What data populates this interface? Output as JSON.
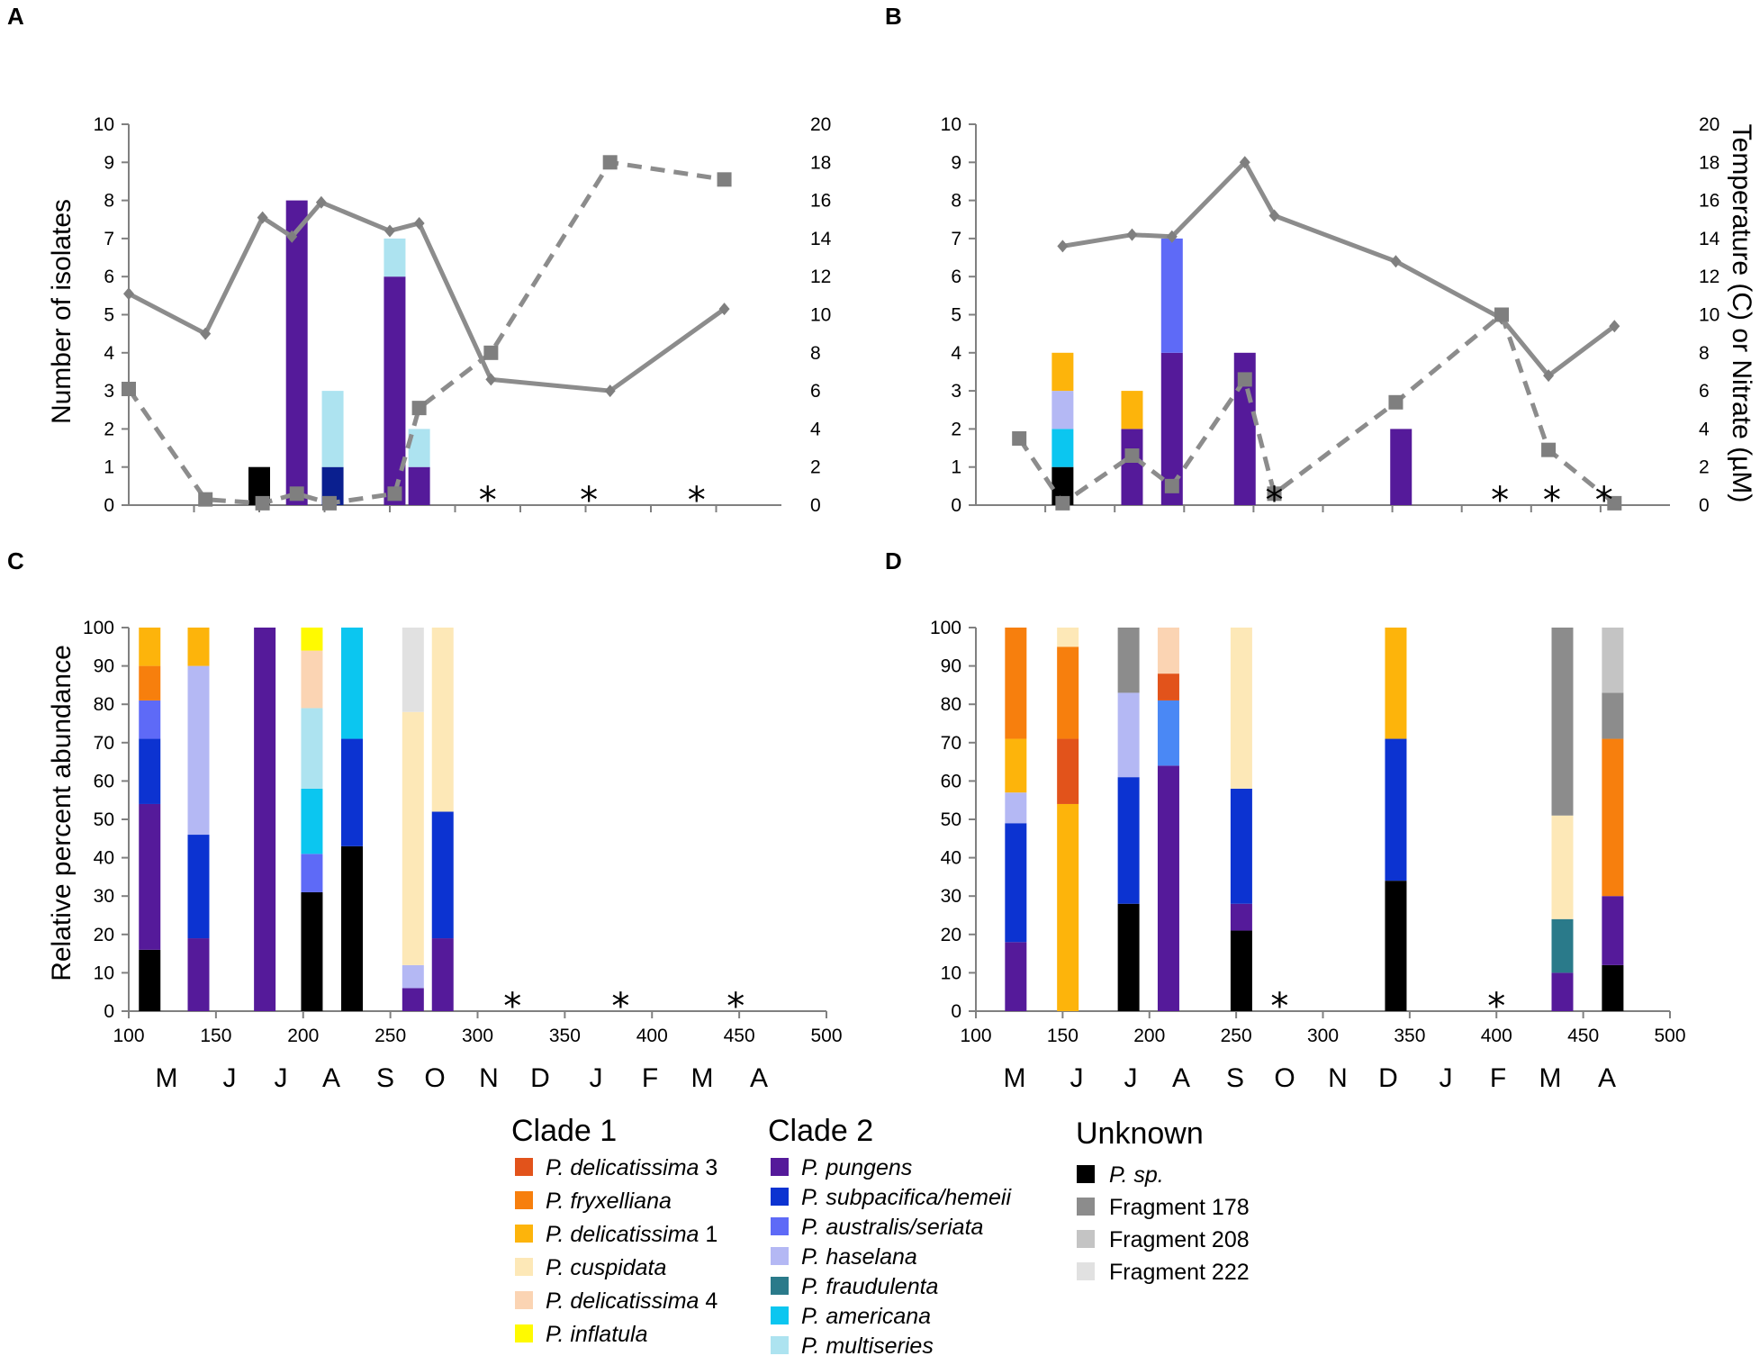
{
  "chart_data": [
    {
      "panel": "A",
      "type": "bar",
      "ylabel": "Number of isolates",
      "ylim": [
        0,
        10
      ],
      "y2lim": [
        0,
        20
      ],
      "bars": [
        {
          "x": 180,
          "stack": [
            {
              "species": "P. sp.",
              "value": 1
            }
          ]
        },
        {
          "x": 203,
          "stack": [
            {
              "species": "P. pungens",
              "value": 8
            }
          ]
        },
        {
          "x": 225,
          "stack": [
            {
              "species": "P. subpacifica/hemeii dark",
              "value": 1
            },
            {
              "species": "P. multiseries",
              "value": 2
            }
          ]
        },
        {
          "x": 263,
          "stack": [
            {
              "species": "P. pungens",
              "value": 6
            },
            {
              "species": "P. multiseries",
              "value": 1
            }
          ]
        },
        {
          "x": 278,
          "stack": [
            {
              "species": "P. pungens",
              "value": 1
            },
            {
              "species": "P. multiseries",
              "value": 1
            }
          ]
        }
      ],
      "lines": [
        {
          "name": "Temperature",
          "style": "solid",
          "axis": "right",
          "points": [
            [
              100,
              11.1
            ],
            [
              147,
              9.0
            ],
            [
              182,
              15.1
            ],
            [
              200,
              14.1
            ],
            [
              218,
              15.9
            ],
            [
              260,
              14.4
            ],
            [
              278,
              14.8
            ],
            [
              322,
              6.6
            ],
            [
              395,
              6.0
            ],
            [
              465,
              10.3
            ]
          ]
        },
        {
          "name": "Nitrate",
          "style": "dashed",
          "axis": "right",
          "points": [
            [
              100,
              6.1
            ],
            [
              147,
              0.3
            ],
            [
              182,
              0.1
            ],
            [
              203,
              0.6
            ],
            [
              223,
              0.1
            ],
            [
              263,
              0.6
            ],
            [
              278,
              5.1
            ],
            [
              322,
              8.0
            ],
            [
              395,
              18.0
            ],
            [
              465,
              17.1
            ]
          ]
        }
      ],
      "asterisks": [
        320,
        382,
        448
      ]
    },
    {
      "panel": "B",
      "type": "bar",
      "y2label": "Temperature (C) or Nitrate (µM)",
      "ylim": [
        0,
        10
      ],
      "y2lim": [
        0,
        20
      ],
      "bars": [
        {
          "x": 150,
          "stack": [
            {
              "species": "P. sp.",
              "value": 1
            },
            {
              "species": "P. americana",
              "value": 1
            },
            {
              "species": "P. haselana",
              "value": 1
            },
            {
              "species": "P. delicatissima 1",
              "value": 1
            }
          ]
        },
        {
          "x": 190,
          "stack": [
            {
              "species": "P. pungens",
              "value": 2
            },
            {
              "species": "P. delicatissima 1",
              "value": 1
            }
          ]
        },
        {
          "x": 213,
          "stack": [
            {
              "species": "P. pungens",
              "value": 4
            },
            {
              "species": "P. australis/seriata",
              "value": 3
            }
          ]
        },
        {
          "x": 255,
          "stack": [
            {
              "species": "P. pungens",
              "value": 4
            }
          ]
        },
        {
          "x": 345,
          "stack": [
            {
              "species": "P. pungens",
              "value": 2
            }
          ]
        }
      ],
      "lines": [
        {
          "name": "Temperature",
          "style": "solid",
          "axis": "right",
          "points": [
            [
              150,
              13.6
            ],
            [
              190,
              14.2
            ],
            [
              213,
              14.1
            ],
            [
              255,
              18.0
            ],
            [
              272,
              15.2
            ],
            [
              342,
              12.8
            ],
            [
              403,
              9.8
            ],
            [
              430,
              6.8
            ],
            [
              468,
              9.4
            ]
          ]
        },
        {
          "name": "Nitrate",
          "style": "dashed",
          "axis": "right",
          "points": [
            [
              125,
              3.5
            ],
            [
              150,
              0.1
            ],
            [
              190,
              2.6
            ],
            [
              213,
              1.0
            ],
            [
              255,
              6.6
            ],
            [
              272,
              0.6
            ],
            [
              342,
              5.4
            ],
            [
              403,
              10.0
            ],
            [
              430,
              2.9
            ],
            [
              468,
              0.1
            ]
          ]
        }
      ],
      "asterisks": [
        272,
        402,
        432,
        462
      ]
    },
    {
      "panel": "C",
      "type": "bar",
      "ylabel": "Relative percent abundance",
      "ylim": [
        0,
        100
      ],
      "xlim": [
        100,
        500
      ],
      "xticks": [
        100,
        150,
        200,
        250,
        300,
        350,
        400,
        450,
        500
      ],
      "months": [
        "M",
        "J",
        "J",
        "A",
        "S",
        "O",
        "N",
        "D",
        "J",
        "F",
        "M",
        "A"
      ],
      "bars": [
        {
          "x": 112,
          "stack": [
            {
              "species": "P. sp.",
              "value": 16
            },
            {
              "species": "P. pungens",
              "value": 38
            },
            {
              "species": "P. subpacifica/hemeii",
              "value": 17
            },
            {
              "species": "P. australis/seriata",
              "value": 10
            },
            {
              "species": "P. fryxelliana",
              "value": 9
            },
            {
              "species": "P. delicatissima 1",
              "value": 10
            }
          ]
        },
        {
          "x": 140,
          "stack": [
            {
              "species": "P. pungens",
              "value": 19
            },
            {
              "species": "P. subpacifica/hemeii",
              "value": 27
            },
            {
              "species": "P. haselana",
              "value": 44
            },
            {
              "species": "P. delicatissima 1",
              "value": 10
            }
          ]
        },
        {
          "x": 178,
          "stack": [
            {
              "species": "P. pungens",
              "value": 100
            }
          ]
        },
        {
          "x": 205,
          "stack": [
            {
              "species": "P. sp.",
              "value": 31
            },
            {
              "species": "P. australis/seriata",
              "value": 10
            },
            {
              "species": "P. americana",
              "value": 17
            },
            {
              "species": "P. multiseries",
              "value": 21
            },
            {
              "species": "P. delicatissima 4",
              "value": 15
            },
            {
              "species": "P. inflatula",
              "value": 6
            }
          ]
        },
        {
          "x": 228,
          "stack": [
            {
              "species": "P. sp.",
              "value": 43
            },
            {
              "species": "P. subpacifica/hemeii",
              "value": 28
            },
            {
              "species": "P. americana",
              "value": 29
            }
          ]
        },
        {
          "x": 263,
          "stack": [
            {
              "species": "P. pungens",
              "value": 6
            },
            {
              "species": "P. haselana",
              "value": 6
            },
            {
              "species": "P. cuspidata",
              "value": 66
            },
            {
              "species": "Fragment 222",
              "value": 22
            }
          ]
        },
        {
          "x": 280,
          "stack": [
            {
              "species": "P. pungens",
              "value": 19
            },
            {
              "species": "P. subpacifica/hemeii",
              "value": 33
            },
            {
              "species": "P. cuspidata",
              "value": 48
            }
          ]
        }
      ],
      "asterisks": [
        320,
        382,
        448
      ]
    },
    {
      "panel": "D",
      "type": "bar",
      "ylim": [
        0,
        100
      ],
      "xlim": [
        100,
        500
      ],
      "xticks": [
        100,
        150,
        200,
        250,
        300,
        350,
        400,
        450,
        500
      ],
      "months": [
        "M",
        "J",
        "J",
        "A",
        "S",
        "O",
        "N",
        "D",
        "J",
        "F",
        "M",
        "A"
      ],
      "bars": [
        {
          "x": 123,
          "stack": [
            {
              "species": "P. pungens",
              "value": 18
            },
            {
              "species": "P. subpacifica/hemeii",
              "value": 31
            },
            {
              "species": "P. haselana",
              "value": 8
            },
            {
              "species": "P. delicatissima 1",
              "value": 14
            },
            {
              "species": "P. fryxelliana",
              "value": 29
            }
          ]
        },
        {
          "x": 153,
          "stack": [
            {
              "species": "P. delicatissima 1",
              "value": 54
            },
            {
              "species": "P. delicatissima 3",
              "value": 17
            },
            {
              "species": "P. fryxelliana",
              "value": 24
            },
            {
              "species": "P. cuspidata",
              "value": 5
            }
          ]
        },
        {
          "x": 188,
          "stack": [
            {
              "species": "P. sp.",
              "value": 28
            },
            {
              "species": "P. subpacifica/hemeii",
              "value": 33
            },
            {
              "species": "P. haselana",
              "value": 22
            },
            {
              "species": "Fragment 178",
              "value": 17
            }
          ]
        },
        {
          "x": 211,
          "stack": [
            {
              "species": "P. pungens",
              "value": 64
            },
            {
              "species": "P. australis/seriata 2",
              "value": 17
            },
            {
              "species": "P. delicatissima 3",
              "value": 7
            },
            {
              "species": "P. delicatissima 4",
              "value": 12
            }
          ]
        },
        {
          "x": 253,
          "stack": [
            {
              "species": "P. sp.",
              "value": 21
            },
            {
              "species": "P. pungens",
              "value": 7
            },
            {
              "species": "P. subpacifica/hemeii",
              "value": 30
            },
            {
              "species": "P. cuspidata",
              "value": 42
            }
          ]
        },
        {
          "x": 342,
          "stack": [
            {
              "species": "P. sp.",
              "value": 34
            },
            {
              "species": "P. subpacifica/hemeii",
              "value": 37
            },
            {
              "species": "P. delicatissima 1",
              "value": 29
            }
          ]
        },
        {
          "x": 438,
          "stack": [
            {
              "species": "P. pungens",
              "value": 10
            },
            {
              "species": "P. fraudulenta",
              "value": 14
            },
            {
              "species": "P. cuspidata",
              "value": 27
            },
            {
              "species": "Fragment 178",
              "value": 49
            }
          ]
        },
        {
          "x": 467,
          "stack": [
            {
              "species": "P. sp.",
              "value": 12
            },
            {
              "species": "P. pungens",
              "value": 18
            },
            {
              "species": "P. fryxelliana",
              "value": 41
            },
            {
              "species": "Fragment 178",
              "value": 12
            },
            {
              "species": "Fragment 208",
              "value": 17
            }
          ]
        }
      ],
      "asterisks": [
        275,
        400
      ]
    }
  ],
  "axes": {
    "left_ticks_top": [
      "0",
      "1",
      "2",
      "3",
      "4",
      "5",
      "6",
      "7",
      "8",
      "9",
      "10"
    ],
    "right_ticks_top": [
      "0",
      "2",
      "4",
      "6",
      "8",
      "10",
      "12",
      "14",
      "16",
      "18",
      "20"
    ],
    "left_ticks_bottom": [
      "0",
      "10",
      "20",
      "30",
      "40",
      "50",
      "60",
      "70",
      "80",
      "90",
      "100"
    ],
    "x_ticks_bottom": [
      "100",
      "150",
      "200",
      "250",
      "300",
      "350",
      "400",
      "450",
      "500"
    ],
    "asterisk": "*"
  },
  "labels": {
    "a": "A",
    "b": "B",
    "c": "C",
    "d": "D",
    "ylabel_top": "Number of isolates",
    "ylabel_right": "Temperature (C) or Nitrate (µM)",
    "ylabel_bottom": "Relative percent abundance"
  },
  "legend": {
    "clade1": {
      "title": "Clade 1",
      "items": [
        {
          "genus": "P.",
          "name": "delicatissima",
          "suffix": " 3",
          "color": "#E2531B"
        },
        {
          "genus": "P.",
          "name": "fryxelliana",
          "suffix": "",
          "color": "#F77F0D"
        },
        {
          "genus": "P.",
          "name": "delicatissima",
          "suffix": " 1",
          "color": "#FDB40B"
        },
        {
          "genus": "P.",
          "name": "cuspidata",
          "suffix": "",
          "color": "#FDE8B7"
        },
        {
          "genus": "P.",
          "name": "delicatissima",
          "suffix": " 4",
          "color": "#FBD4B3"
        },
        {
          "genus": "P.",
          "name": "inflatula",
          "suffix": "",
          "color": "#FFFA00"
        }
      ]
    },
    "clade2": {
      "title": "Clade 2",
      "items": [
        {
          "genus": "P.",
          "name": "pungens",
          "suffix": "",
          "color": "#551A9A"
        },
        {
          "genus": "P.",
          "name": "subpacifica/hemeii",
          "suffix": "",
          "color": "#0C33D1"
        },
        {
          "genus": "P.",
          "name": "australis/seriata",
          "suffix": "",
          "color": "#5E6AF7"
        },
        {
          "genus": "P.",
          "name": "haselana",
          "suffix": "",
          "color": "#B4B8F4"
        },
        {
          "genus": "P.",
          "name": "fraudulenta",
          "suffix": "",
          "color": "#2A7A8A"
        },
        {
          "genus": "P.",
          "name": "americana",
          "suffix": "",
          "color": "#0BC6F0"
        },
        {
          "genus": "P.",
          "name": "multiseries",
          "suffix": "",
          "color": "#ADE3F0"
        }
      ]
    },
    "unknown": {
      "title": "Unknown",
      "items": [
        {
          "genus": "P.",
          "name": "sp.",
          "suffix": "",
          "italic": true,
          "color": "#000000"
        },
        {
          "genus": "",
          "name": "Fragment 178",
          "suffix": "",
          "italic": false,
          "color": "#8C8C8C"
        },
        {
          "genus": "",
          "name": "Fragment 208",
          "suffix": "",
          "italic": false,
          "color": "#C4C4C4"
        },
        {
          "genus": "",
          "name": "Fragment 222",
          "suffix": "",
          "italic": false,
          "color": "#E1E1E1"
        }
      ]
    }
  },
  "colors": {
    "P. delicatissima 3": "#E2531B",
    "P. fryxelliana": "#F77F0D",
    "P. delicatissima 1": "#FDB40B",
    "P. cuspidata": "#FDE8B7",
    "P. delicatissima 4": "#FBD4B3",
    "P. inflatula": "#FFFA00",
    "P. pungens": "#551A9A",
    "P. subpacifica/hemeii": "#0C33D1",
    "P. subpacifica/hemeii dark": "#0A1F8F",
    "P. australis/seriata": "#5E6AF7",
    "P. australis/seriata 2": "#4A88F5",
    "P. haselana": "#B4B8F4",
    "P. fraudulenta": "#2A7A8A",
    "P. americana": "#0BC6F0",
    "P. multiseries": "#ADE3F0",
    "P. sp.": "#000000",
    "Fragment 178": "#8C8C8C",
    "Fragment 208": "#C4C4C4",
    "Fragment 222": "#E1E1E1",
    "line": "#8C8C8C",
    "axis": "#808080"
  }
}
